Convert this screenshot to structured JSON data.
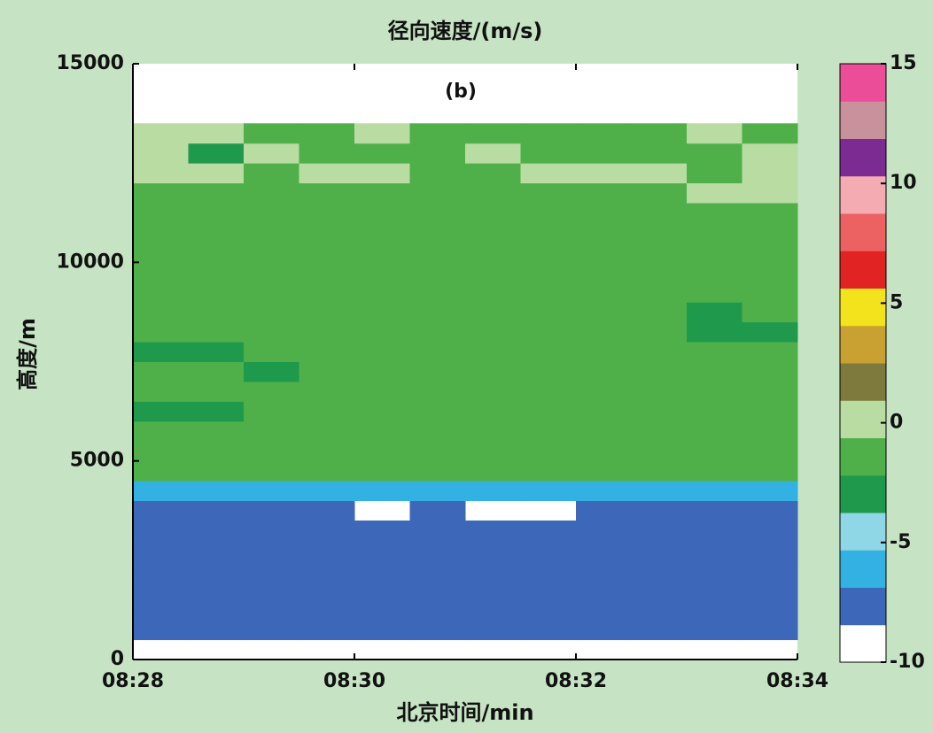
{
  "chart_data": {
    "type": "heatmap",
    "title": "径向速度/(m/s)",
    "annotation": "(b)",
    "xlabel": "北京时间/min",
    "ylabel": "高度/m",
    "xlim": [
      508,
      514
    ],
    "xticks": [
      {
        "value": 508,
        "label": "08:28"
      },
      {
        "value": 510,
        "label": "08:30"
      },
      {
        "value": 512,
        "label": "08:32"
      },
      {
        "value": 514,
        "label": "08:34"
      }
    ],
    "ylim": [
      0,
      15000
    ],
    "yticks": [
      0,
      5000,
      10000,
      15000
    ],
    "xbins": [
      508,
      508.5,
      509,
      509.5,
      510,
      510.5,
      511,
      511.5,
      512,
      512.5,
      513,
      513.5,
      514
    ],
    "ybins": [
      0,
      500,
      1000,
      1500,
      2000,
      2500,
      3000,
      3500,
      4000,
      4500,
      5000,
      5500,
      6000,
      6500,
      7000,
      7500,
      8000,
      8500,
      9000,
      9500,
      10000,
      10500,
      11000,
      11500,
      12000,
      12500,
      13000,
      13500,
      14000,
      14500,
      15000
    ],
    "z": [
      [
        null,
        null,
        null,
        null,
        null,
        null,
        null,
        null,
        null,
        null,
        null,
        null
      ],
      [
        -8,
        -8,
        -8,
        -8,
        -8,
        -8,
        -8,
        -8,
        -8,
        -8,
        -8,
        -8
      ],
      [
        -8,
        -8,
        -8,
        -8,
        -8,
        -8,
        -8,
        -8,
        -8,
        -8,
        -8,
        -8
      ],
      [
        -8,
        -8,
        -8,
        -8,
        -8,
        -8,
        -8,
        -8,
        -8,
        -8,
        -8,
        -8
      ],
      [
        -8,
        -8,
        -8,
        -8,
        -8,
        -8,
        -8,
        -8,
        -8,
        -8,
        -8,
        -8
      ],
      [
        -8,
        -8,
        -8,
        -8,
        -8,
        -8,
        -8,
        -8,
        -8,
        -8,
        -8,
        -8
      ],
      [
        -8,
        -8,
        -8,
        -8,
        -8,
        -8,
        -8,
        -8,
        -8,
        -8,
        -8,
        -8
      ],
      [
        -8,
        -8,
        -8,
        -8,
        null,
        -8,
        null,
        null,
        -8,
        -8,
        -8,
        -8
      ],
      [
        -6,
        -6,
        -6,
        -6,
        -6,
        -6,
        -6,
        -6,
        -6,
        -6,
        -6,
        -6
      ],
      [
        -1,
        -1,
        -1,
        -1,
        -1,
        -1,
        -1,
        -1,
        -1,
        -1,
        -1,
        -1
      ],
      [
        -1,
        -1,
        -1,
        -1,
        -1,
        -1,
        -1,
        -1,
        -1,
        -1,
        -1,
        -1
      ],
      [
        -1,
        -1,
        -1,
        -1,
        -1,
        -1,
        -1,
        -1,
        -1,
        -1,
        -1,
        -1
      ],
      [
        -3,
        -3,
        -1,
        -1,
        -1,
        -1,
        -1,
        -1,
        -1,
        -1,
        -1,
        -1
      ],
      [
        -1,
        -1,
        -1,
        -1,
        -1,
        -1,
        -1,
        -1,
        -1,
        -1,
        -1,
        -1
      ],
      [
        -1,
        -1,
        -3,
        -1,
        -1,
        -1,
        -1,
        -1,
        -1,
        -1,
        -1,
        -1
      ],
      [
        -3,
        -3,
        -1,
        -1,
        -1,
        -1,
        -1,
        -1,
        -1,
        -1,
        -1,
        -1
      ],
      [
        -1,
        -1,
        -1,
        -1,
        -1,
        -1,
        -1,
        -1,
        -1,
        -1,
        -3,
        -3
      ],
      [
        -1,
        -1,
        -1,
        -1,
        -1,
        -1,
        -1,
        -1,
        -1,
        -1,
        -3,
        -1
      ],
      [
        -1,
        -1,
        -1,
        -1,
        -1,
        -1,
        -1,
        -1,
        -1,
        -1,
        -1,
        -1
      ],
      [
        -1,
        -1,
        -1,
        -1,
        -1,
        -1,
        -1,
        -1,
        -1,
        -1,
        -1,
        -1
      ],
      [
        -1,
        -1,
        -1,
        -1,
        -1,
        -1,
        -1,
        -1,
        -1,
        -1,
        -1,
        -1
      ],
      [
        -1,
        -1,
        -1,
        -1,
        -1,
        -1,
        -1,
        -1,
        -1,
        -1,
        -1,
        -1
      ],
      [
        -1,
        -1,
        -1,
        -1,
        -1,
        -1,
        -1,
        -1,
        -1,
        -1,
        -1,
        -1
      ],
      [
        -1,
        -1,
        -1,
        -1,
        -1,
        -1,
        -1,
        -1,
        -1,
        -1,
        0,
        0
      ],
      [
        0,
        0,
        -1,
        0,
        0,
        -1,
        -1,
        0,
        0,
        0,
        -1,
        0
      ],
      [
        0,
        -3,
        0,
        -1,
        -1,
        -1,
        0,
        -1,
        -1,
        -1,
        -1,
        0
      ],
      [
        0,
        0,
        -1,
        -1,
        0,
        -1,
        -1,
        -1,
        -1,
        -1,
        0,
        -1
      ],
      [
        null,
        null,
        null,
        null,
        null,
        null,
        null,
        null,
        null,
        null,
        null,
        null
      ],
      [
        null,
        null,
        null,
        null,
        null,
        null,
        null,
        null,
        null,
        null,
        null,
        null
      ],
      [
        null,
        null,
        null,
        null,
        null,
        null,
        null,
        null,
        null,
        null,
        null,
        null
      ]
    ],
    "clim": [
      -10,
      15
    ],
    "cticks": [
      -10,
      -5,
      0,
      5,
      10,
      15
    ],
    "colormap": [
      "#ffffff",
      "#3d67b9",
      "#33b1e2",
      "#8fd6e6",
      "#1f9a4c",
      "#4fb04a",
      "#b9dca3",
      "#7e7a3e",
      "#c9a133",
      "#f3e31c",
      "#e12323",
      "#ec6262",
      "#f4abb1",
      "#7b2b91",
      "#c9919b",
      "#ec4d99"
    ]
  }
}
